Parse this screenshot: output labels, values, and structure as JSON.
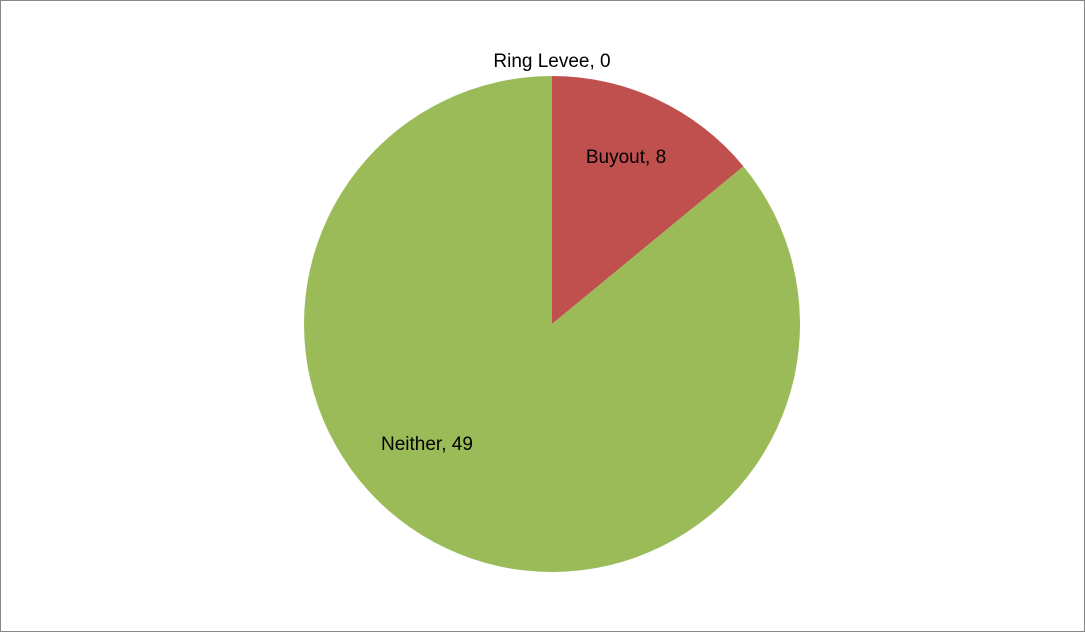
{
  "chart_data": {
    "type": "pie",
    "categories": [
      "Ring Levee",
      "Buyout",
      "Neither"
    ],
    "values": [
      0,
      8,
      49
    ],
    "colors": [
      "#4F81BD",
      "#C0504D",
      "#9BBB59"
    ],
    "data_labels": [
      "Ring Levee, 0",
      "Buyout, 8",
      "Neither, 49"
    ],
    "start_angle": "12 o'clock",
    "direction": "clockwise",
    "legend": "none"
  }
}
